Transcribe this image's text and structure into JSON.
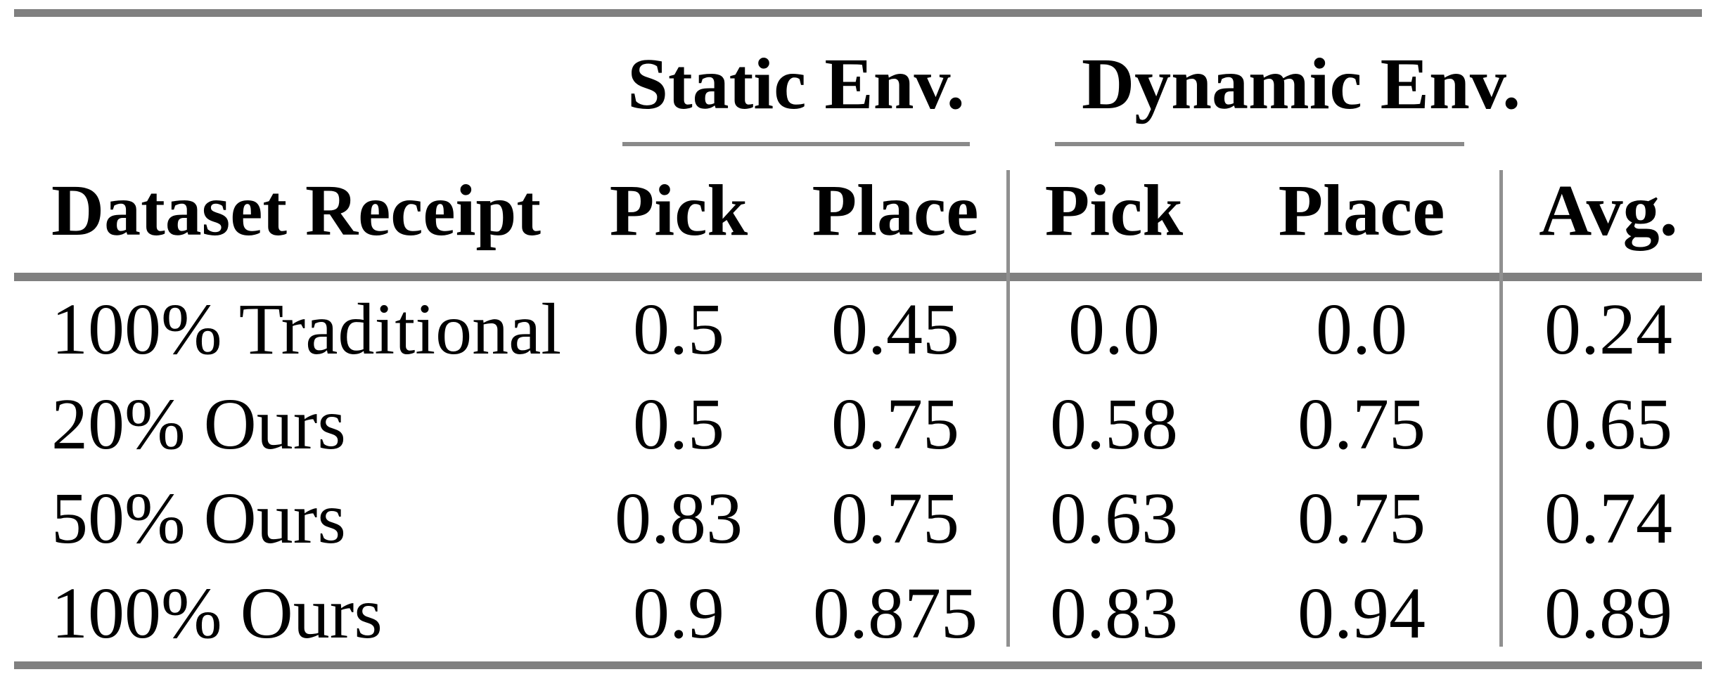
{
  "table": {
    "group_headers": [
      {
        "label": "Static Env."
      },
      {
        "label": "Dynamic Env."
      }
    ],
    "columns": [
      {
        "label": "Dataset Receipt"
      },
      {
        "label": "Pick"
      },
      {
        "label": "Place"
      },
      {
        "label": "Pick"
      },
      {
        "label": "Place"
      },
      {
        "label": "Avg."
      }
    ],
    "rows": [
      {
        "dataset": "100% Traditional",
        "values": [
          "0.5",
          "0.45",
          "0.0",
          "0.0",
          "0.24"
        ]
      },
      {
        "dataset": "20% Ours",
        "values": [
          "0.5",
          "0.75",
          "0.58",
          "0.75",
          "0.65"
        ]
      },
      {
        "dataset": "50% Ours",
        "values": [
          "0.83",
          "0.75",
          "0.63",
          "0.75",
          "0.74"
        ]
      },
      {
        "dataset": "100% Ours",
        "values": [
          "0.9",
          "0.875",
          "0.83",
          "0.94",
          "0.89"
        ]
      }
    ],
    "colors": {
      "rule_gray": "#808080",
      "divider_gray": "#909090",
      "text": "#000000",
      "background": "#ffffff"
    }
  }
}
